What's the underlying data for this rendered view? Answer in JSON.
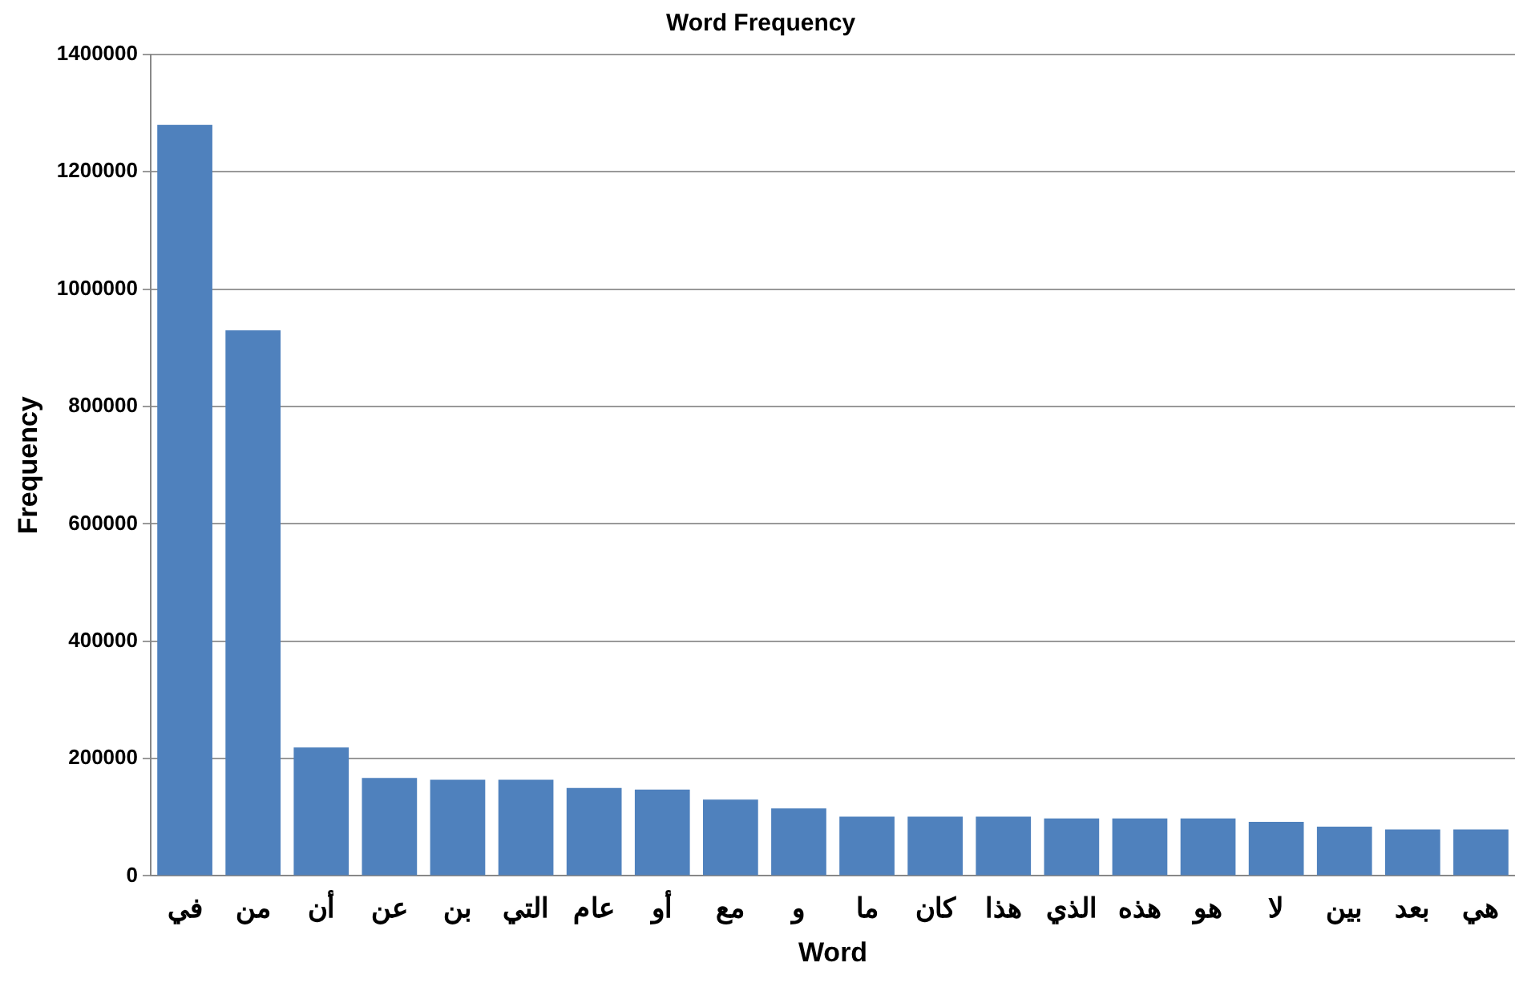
{
  "chart_data": {
    "type": "bar",
    "title": "Word Frequency",
    "xlabel": "Word",
    "ylabel": "Frequency",
    "categories": [
      "في",
      "من",
      "أن",
      "عن",
      "بن",
      "التي",
      "عام",
      "أو",
      "مع",
      "و",
      "ما",
      "كان",
      "هذا",
      "الذي",
      "هذه",
      "هو",
      "لا",
      "بين",
      "بعد",
      "هي"
    ],
    "values": [
      1280000,
      930000,
      219000,
      167000,
      164000,
      164000,
      150000,
      147000,
      130000,
      115000,
      101000,
      101000,
      101000,
      98000,
      98000,
      98000,
      92000,
      84000,
      79000,
      79000
    ],
    "color": "#4f81bd",
    "ylim": [
      0,
      1400000
    ],
    "yticks": [
      0,
      200000,
      400000,
      600000,
      800000,
      1000000,
      1200000,
      1400000
    ],
    "grid": "y",
    "legend": false
  }
}
